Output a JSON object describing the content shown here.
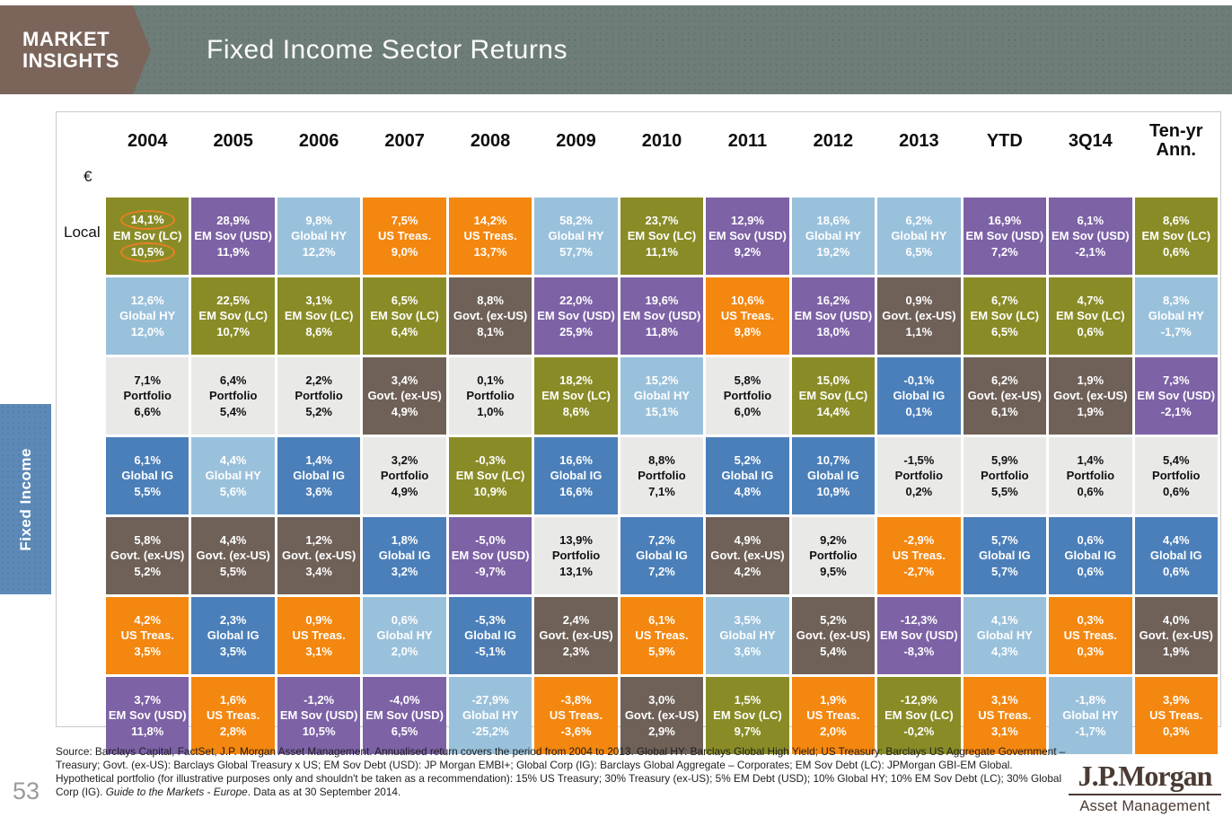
{
  "header": {
    "badge_line1": "MARKET",
    "badge_line2": "INSIGHTS",
    "title": "Fixed Income Sector Returns"
  },
  "sidebar": {
    "tab_label": "Fixed Income"
  },
  "table": {
    "left_labels": [
      "€",
      "Local"
    ]
  },
  "asset_colors": {
    "EM Sov (LC)": {
      "bg": "#898c26",
      "fg": "#ffffff"
    },
    "EM Sov (USD)": {
      "bg": "#7d62a6",
      "fg": "#ffffff"
    },
    "Global HY": {
      "bg": "#9ac1db",
      "fg": "#ffffff"
    },
    "US Treas.": {
      "bg": "#f4870f",
      "fg": "#ffffff"
    },
    "Govt. (ex-US)": {
      "bg": "#6f6158",
      "fg": "#ffffff"
    },
    "Portfolio": {
      "bg": "#e9eae8",
      "fg": "#111111"
    },
    "Global IG": {
      "bg": "#4b7fb9",
      "fg": "#ffffff"
    }
  },
  "annotation_color": "#e87f25",
  "chart_data": {
    "type": "table",
    "title": "Fixed Income Sector Returns",
    "value_rows_legend": {
      "top": "€",
      "bottom": "Local"
    },
    "columns": [
      "2004",
      "2005",
      "2006",
      "2007",
      "2008",
      "2009",
      "2010",
      "2011",
      "2012",
      "2013",
      "YTD",
      "3Q14",
      "Ten-yr Ann."
    ],
    "rows": [
      [
        [
          "14,1%",
          "EM Sov (LC)",
          "10,5%"
        ],
        [
          "28,9%",
          "EM Sov (USD)",
          "11,9%"
        ],
        [
          "9,8%",
          "Global HY",
          "12,2%"
        ],
        [
          "7,5%",
          "US Treas.",
          "9,0%"
        ],
        [
          "14,2%",
          "US Treas.",
          "13,7%"
        ],
        [
          "58,2%",
          "Global HY",
          "57,7%"
        ],
        [
          "23,7%",
          "EM Sov (LC)",
          "11,1%"
        ],
        [
          "12,9%",
          "EM Sov (USD)",
          "9,2%"
        ],
        [
          "18,6%",
          "Global HY",
          "19,2%"
        ],
        [
          "6,2%",
          "Global HY",
          "6,5%"
        ],
        [
          "16,9%",
          "EM Sov (USD)",
          "7,2%"
        ],
        [
          "6,1%",
          "EM Sov (USD)",
          "-2,1%"
        ],
        [
          "8,6%",
          "EM Sov (LC)",
          "0,6%"
        ]
      ],
      [
        [
          "12,6%",
          "Global HY",
          "12,0%"
        ],
        [
          "22,5%",
          "EM Sov (LC)",
          "10,7%"
        ],
        [
          "3,1%",
          "EM Sov (LC)",
          "8,6%"
        ],
        [
          "6,5%",
          "EM Sov (LC)",
          "6,4%"
        ],
        [
          "8,8%",
          "Govt. (ex-US)",
          "8,1%"
        ],
        [
          "22,0%",
          "EM Sov (USD)",
          "25,9%"
        ],
        [
          "19,6%",
          "EM Sov (USD)",
          "11,8%"
        ],
        [
          "10,6%",
          "US Treas.",
          "9,8%"
        ],
        [
          "16,2%",
          "EM Sov (USD)",
          "18,0%"
        ],
        [
          "0,9%",
          "Govt. (ex-US)",
          "1,1%"
        ],
        [
          "6,7%",
          "EM Sov (LC)",
          "6,5%"
        ],
        [
          "4,7%",
          "EM Sov (LC)",
          "0,6%"
        ],
        [
          "8,3%",
          "Global HY",
          "-1,7%"
        ]
      ],
      [
        [
          "7,1%",
          "Portfolio",
          "6,6%"
        ],
        [
          "6,4%",
          "Portfolio",
          "5,4%"
        ],
        [
          "2,2%",
          "Portfolio",
          "5,2%"
        ],
        [
          "3,4%",
          "Govt. (ex-US)",
          "4,9%"
        ],
        [
          "0,1%",
          "Portfolio",
          "1,0%"
        ],
        [
          "18,2%",
          "EM Sov (LC)",
          "8,6%"
        ],
        [
          "15,2%",
          "Global HY",
          "15,1%"
        ],
        [
          "5,8%",
          "Portfolio",
          "6,0%"
        ],
        [
          "15,0%",
          "EM Sov (LC)",
          "14,4%"
        ],
        [
          "-0,1%",
          "Global IG",
          "0,1%"
        ],
        [
          "6,2%",
          "Govt. (ex-US)",
          "6,1%"
        ],
        [
          "1,9%",
          "Govt. (ex-US)",
          "1,9%"
        ],
        [
          "7,3%",
          "EM Sov (USD)",
          "-2,1%"
        ]
      ],
      [
        [
          "6,1%",
          "Global IG",
          "5,5%"
        ],
        [
          "4,4%",
          "Global HY",
          "5,6%"
        ],
        [
          "1,4%",
          "Global IG",
          "3,6%"
        ],
        [
          "3,2%",
          "Portfolio",
          "4,9%"
        ],
        [
          "-0,3%",
          "EM Sov (LC)",
          "10,9%"
        ],
        [
          "16,6%",
          "Global IG",
          "16,6%"
        ],
        [
          "8,8%",
          "Portfolio",
          "7,1%"
        ],
        [
          "5,2%",
          "Global IG",
          "4,8%"
        ],
        [
          "10,7%",
          "Global IG",
          "10,9%"
        ],
        [
          "-1,5%",
          "Portfolio",
          "0,2%"
        ],
        [
          "5,9%",
          "Portfolio",
          "5,5%"
        ],
        [
          "1,4%",
          "Portfolio",
          "0,6%"
        ],
        [
          "5,4%",
          "Portfolio",
          "0,6%"
        ]
      ],
      [
        [
          "5,8%",
          "Govt. (ex-US)",
          "5,2%"
        ],
        [
          "4,4%",
          "Govt. (ex-US)",
          "5,5%"
        ],
        [
          "1,2%",
          "Govt. (ex-US)",
          "3,4%"
        ],
        [
          "1,8%",
          "Global IG",
          "3,2%"
        ],
        [
          "-5,0%",
          "EM Sov (USD)",
          "-9,7%"
        ],
        [
          "13,9%",
          "Portfolio",
          "13,1%"
        ],
        [
          "7,2%",
          "Global IG",
          "7,2%"
        ],
        [
          "4,9%",
          "Govt. (ex-US)",
          "4,2%"
        ],
        [
          "9,2%",
          "Portfolio",
          "9,5%"
        ],
        [
          "-2,9%",
          "US Treas.",
          "-2,7%"
        ],
        [
          "5,7%",
          "Global IG",
          "5,7%"
        ],
        [
          "0,6%",
          "Global IG",
          "0,6%"
        ],
        [
          "4,4%",
          "Global IG",
          "0,6%"
        ]
      ],
      [
        [
          "4,2%",
          "US Treas.",
          "3,5%"
        ],
        [
          "2,3%",
          "Global IG",
          "3,5%"
        ],
        [
          "0,9%",
          "US Treas.",
          "3,1%"
        ],
        [
          "0,6%",
          "Global HY",
          "2,0%"
        ],
        [
          "-5,3%",
          "Global IG",
          "-5,1%"
        ],
        [
          "2,4%",
          "Govt. (ex-US)",
          "2,3%"
        ],
        [
          "6,1%",
          "US Treas.",
          "5,9%"
        ],
        [
          "3,5%",
          "Global HY",
          "3,6%"
        ],
        [
          "5,2%",
          "Govt. (ex-US)",
          "5,4%"
        ],
        [
          "-12,3%",
          "EM Sov (USD)",
          "-8,3%"
        ],
        [
          "4,1%",
          "Global HY",
          "4,3%"
        ],
        [
          "0,3%",
          "US Treas.",
          "0,3%"
        ],
        [
          "4,0%",
          "Govt. (ex-US)",
          "1,9%"
        ]
      ],
      [
        [
          "3,7%",
          "EM Sov (USD)",
          "11,8%"
        ],
        [
          "1,6%",
          "US Treas.",
          "2,8%"
        ],
        [
          "-1,2%",
          "EM Sov (USD)",
          "10,5%"
        ],
        [
          "-4,0%",
          "EM Sov (USD)",
          "6,5%"
        ],
        [
          "-27,9%",
          "Global HY",
          "-25,2%"
        ],
        [
          "-3,8%",
          "US Treas.",
          "-3,6%"
        ],
        [
          "3,0%",
          "Govt. (ex-US)",
          "2,9%"
        ],
        [
          "1,5%",
          "EM Sov (LC)",
          "9,7%"
        ],
        [
          "1,9%",
          "US Treas.",
          "2,0%"
        ],
        [
          "-12,9%",
          "EM Sov (LC)",
          "-0,2%"
        ],
        [
          "3,1%",
          "US Treas.",
          "3,1%"
        ],
        [
          "-1,8%",
          "Global HY",
          "-1,7%"
        ],
        [
          "3,9%",
          "US Treas.",
          "0,3%"
        ]
      ]
    ],
    "highlight": {
      "row": 0,
      "col": 0,
      "note": "top (€) and bottom (Local) values circled in orange"
    }
  },
  "footer": {
    "source_text": "Source: Barclays Capital, FactSet, J.P. Morgan Asset Management. Annualised return covers the period from 2004 to 2013. Global HY: Barclays Global High Yield; US Treasury: Barclays US Aggregate Government – Treasury; Govt. (ex-US): Barclays Global Treasury x US; EM Sov Debt (USD): JP Morgan EMBI+; Global Corp (IG): Barclays Global Aggregate – Corporates; EM Sov Debt (LC): JPMorgan GBI-EM Global. Hypothetical portfolio (for illustrative purposes only and shouldn't be taken as a recommendation): 15% US Treasury; 30% Treasury (ex-US); 5% EM Debt (USD); 10% Global HY; 10% EM Sov Debt (LC); 30% Global Corp (IG). ",
    "italic_text": "Guide to the Markets - Europe",
    "after_italic": ". Data as at 30 September 2014.",
    "page_number": "53"
  },
  "logo": {
    "wordmark": "J.P.Morgan",
    "subtitle": "Asset Management"
  }
}
